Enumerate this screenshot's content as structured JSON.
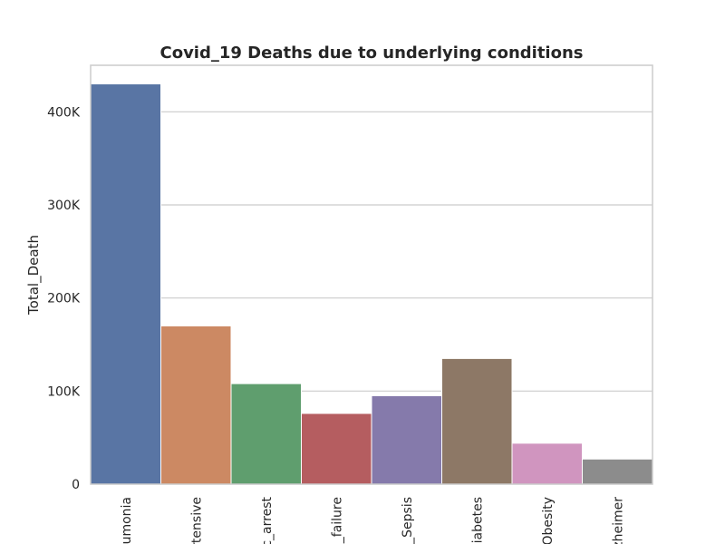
{
  "chart_data": {
    "type": "bar",
    "title": "Covid_19 Deaths due to underlying conditions",
    "xlabel": "",
    "ylabel": "Total_Death",
    "categories": [
      "umonia",
      "rtensive",
      "c_arrest",
      "_failure",
      "_Sepsis",
      "iabetes",
      "Obesity",
      "zheimer"
    ],
    "values": [
      430000,
      170000,
      108000,
      76000,
      95000,
      135000,
      44000,
      27000
    ],
    "colors": [
      "#5975a4",
      "#cc8963",
      "#5f9e6e",
      "#b55d60",
      "#857aab",
      "#8d7866",
      "#d095bf",
      "#8c8c8c"
    ],
    "ylim": [
      0,
      450000
    ],
    "yticks": [
      0,
      100000,
      200000,
      300000,
      400000
    ],
    "ytick_labels": [
      "0",
      "100K",
      "200K",
      "300K",
      "400K"
    ],
    "grid": true
  }
}
